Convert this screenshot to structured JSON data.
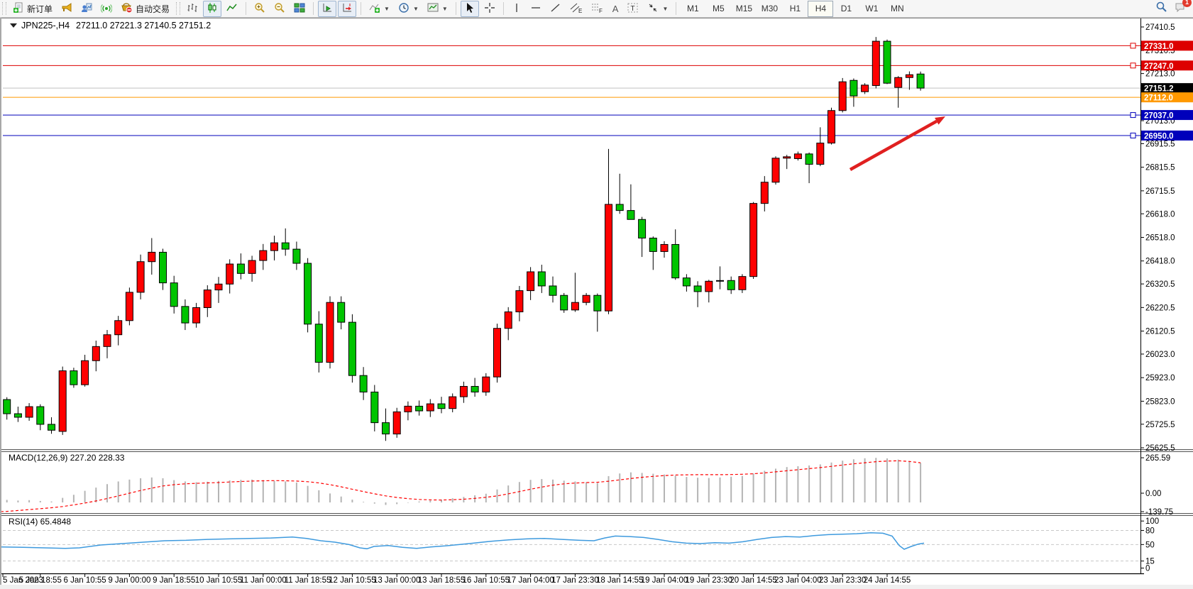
{
  "toolbar": {
    "new_order": "新订单",
    "auto_trading": "自动交易",
    "timeframes": [
      "M1",
      "M5",
      "M15",
      "M30",
      "H1",
      "H4",
      "D1",
      "W1",
      "MN"
    ],
    "active_timeframe": "H4",
    "notification_count": "1",
    "glyphs": {
      "text_a": "A",
      "text_t": "T",
      "channel": "E",
      "fibo": "F",
      "dropdown": "▼"
    }
  },
  "chart": {
    "symbol_period": "JPN225-,H4",
    "ohlc_text": "27211.0 27221.3 27140.5 27151.2",
    "macd_label": "MACD(12,26,9) 227.20 228.33",
    "rsi_label": "RSI(14) 65.4848"
  },
  "chart_data": {
    "type": "candlestick",
    "symbol": "JPN225-",
    "timeframe": "H4",
    "current_bar": {
      "open": 27211.0,
      "high": 27221.3,
      "low": 27140.5,
      "close": 27151.2
    },
    "ylim": [
      25625.5,
      27410.5
    ],
    "price_ticks": [
      27410.5,
      27310.5,
      27213.0,
      27013.0,
      26915.5,
      26815.5,
      26715.5,
      26618.0,
      26518.0,
      26418.0,
      26320.5,
      26220.5,
      26120.5,
      26023.0,
      25923.0,
      25823.0,
      25725.5,
      25625.5
    ],
    "levels": [
      {
        "price": 27331.0,
        "label": "27331.0",
        "line_color": "#dd0000",
        "label_bg": "#dd0000",
        "anchor": true
      },
      {
        "price": 27247.0,
        "label": "27247.0",
        "line_color": "#dd0000",
        "label_bg": "#dd0000",
        "anchor": true
      },
      {
        "price": 27151.2,
        "label": "27151.2",
        "line_color": "#c0c0c0",
        "label_bg": "#000000",
        "anchor": false
      },
      {
        "price": 27112.0,
        "label": "27112.0",
        "line_color": "#ff9900",
        "label_bg": "#ff9900",
        "anchor": false
      },
      {
        "price": 27037.0,
        "label": "27037.0",
        "line_color": "#0000bb",
        "label_bg": "#0000bb",
        "anchor": true
      },
      {
        "price": 26950.0,
        "label": "26950.0",
        "line_color": "#0000bb",
        "label_bg": "#0000bb",
        "anchor": true
      }
    ],
    "candles": [
      [
        25795,
        25850,
        25770,
        25830
      ],
      [
        25830,
        25840,
        25745,
        25770
      ],
      [
        25770,
        25800,
        25735,
        25755
      ],
      [
        25755,
        25815,
        25740,
        25800
      ],
      [
        25800,
        25810,
        25700,
        25725
      ],
      [
        25725,
        25755,
        25685,
        25700
      ],
      [
        25695,
        25970,
        25680,
        25952
      ],
      [
        25952,
        25965,
        25880,
        25893
      ],
      [
        25893,
        26020,
        25885,
        25995
      ],
      [
        25995,
        26080,
        25950,
        26055
      ],
      [
        26055,
        26125,
        26005,
        26105
      ],
      [
        26105,
        26185,
        26060,
        26165
      ],
      [
        26165,
        26305,
        26145,
        26285
      ],
      [
        26285,
        26445,
        26255,
        26415
      ],
      [
        26415,
        26515,
        26360,
        26455
      ],
      [
        26455,
        26470,
        26295,
        26325
      ],
      [
        26325,
        26355,
        26195,
        26225
      ],
      [
        26225,
        26255,
        26125,
        26155
      ],
      [
        26155,
        26240,
        26135,
        26220
      ],
      [
        26220,
        26315,
        26180,
        26295
      ],
      [
        26295,
        26350,
        26240,
        26320
      ],
      [
        26320,
        26425,
        26280,
        26405
      ],
      [
        26405,
        26450,
        26340,
        26365
      ],
      [
        26365,
        26440,
        26330,
        26420
      ],
      [
        26420,
        26490,
        26380,
        26462
      ],
      [
        26462,
        26525,
        26420,
        26495
      ],
      [
        26495,
        26556,
        26440,
        26468
      ],
      [
        26468,
        26500,
        26380,
        26408
      ],
      [
        26408,
        26430,
        26115,
        26150
      ],
      [
        26150,
        26205,
        25945,
        25988
      ],
      [
        25988,
        26268,
        25962,
        26242
      ],
      [
        26242,
        26268,
        26128,
        26158
      ],
      [
        26158,
        26192,
        25902,
        25932
      ],
      [
        25932,
        25968,
        25828,
        25862
      ],
      [
        25862,
        25892,
        25695,
        25732
      ],
      [
        25732,
        25792,
        25655,
        25684
      ],
      [
        25684,
        25795,
        25668,
        25778
      ],
      [
        25778,
        25822,
        25742,
        25802
      ],
      [
        25802,
        25826,
        25762,
        25782
      ],
      [
        25782,
        25832,
        25756,
        25812
      ],
      [
        25812,
        25842,
        25772,
        25792
      ],
      [
        25792,
        25856,
        25776,
        25842
      ],
      [
        25842,
        25906,
        25816,
        25886
      ],
      [
        25886,
        25922,
        25842,
        25862
      ],
      [
        25862,
        25942,
        25846,
        25926
      ],
      [
        25926,
        26152,
        25902,
        26132
      ],
      [
        26132,
        26222,
        26082,
        26202
      ],
      [
        26202,
        26312,
        26162,
        26292
      ],
      [
        26292,
        26392,
        26252,
        26372
      ],
      [
        26372,
        26402,
        26282,
        26312
      ],
      [
        26312,
        26352,
        26242,
        26272
      ],
      [
        26272,
        26282,
        26198,
        26210
      ],
      [
        26210,
        26368,
        26202,
        26242
      ],
      [
        26242,
        26282,
        26230,
        26272
      ],
      [
        26272,
        26280,
        26118,
        26206
      ],
      [
        26206,
        26893,
        26192,
        26658
      ],
      [
        26658,
        26788,
        26618,
        26632
      ],
      [
        26632,
        26743,
        26598,
        26594
      ],
      [
        26594,
        26605,
        26435,
        26515
      ],
      [
        26515,
        26522,
        26380,
        26458
      ],
      [
        26458,
        26502,
        26432,
        26488
      ],
      [
        26488,
        26552,
        26338,
        26346
      ],
      [
        26346,
        26362,
        26288,
        26312
      ],
      [
        26312,
        26332,
        26222,
        26288
      ],
      [
        26288,
        26338,
        26242,
        26332
      ],
      [
        26332,
        26395,
        26298,
        26335
      ],
      [
        26335,
        26352,
        26278,
        26296
      ],
      [
        26296,
        26362,
        26282,
        26352
      ],
      [
        26352,
        26668,
        26342,
        26662
      ],
      [
        26662,
        26778,
        26628,
        26752
      ],
      [
        26752,
        26862,
        26742,
        26854
      ],
      [
        26854,
        26868,
        26808,
        26860
      ],
      [
        26852,
        26882,
        26844,
        26872
      ],
      [
        26872,
        26878,
        26748,
        26828
      ],
      [
        26828,
        26985,
        26820,
        26918
      ],
      [
        26918,
        27068,
        26912,
        27056
      ],
      [
        27056,
        27194,
        27048,
        27178
      ],
      [
        27184,
        27192,
        27072,
        27118
      ],
      [
        27136,
        27172,
        27126,
        27164
      ],
      [
        27162,
        27368,
        27150,
        27350
      ],
      [
        27350,
        27357,
        27168,
        27172
      ],
      [
        27154,
        27202,
        27068,
        27196
      ],
      [
        27196,
        27222,
        27144,
        27208
      ],
      [
        27211,
        27221.3,
        27140.5,
        27151.2
      ]
    ],
    "macd": {
      "params": "12,26,9",
      "value": 227.2,
      "signal_value": 228.33,
      "ticks": [
        {
          "v": 265.59,
          "label": "265.59"
        },
        {
          "v": 0,
          "label": "0.00"
        },
        {
          "v": -139.75,
          "label": "-139.75"
        }
      ],
      "hist": [
        -45,
        -50,
        -55,
        -52,
        -58,
        -62,
        -35,
        -12,
        18,
        42,
        68,
        88,
        102,
        112,
        118,
        112,
        98,
        88,
        82,
        86,
        92,
        96,
        100,
        102,
        98,
        92,
        88,
        80,
        55,
        22,
        -2,
        -25,
        -48,
        -65,
        -78,
        -88,
        -82,
        -72,
        -62,
        -55,
        -48,
        -38,
        -28,
        -16,
        -4,
        28,
        58,
        84,
        100,
        106,
        102,
        94,
        88,
        82,
        76,
        128,
        148,
        156,
        152,
        146,
        140,
        132,
        122,
        116,
        114,
        118,
        124,
        130,
        148,
        168,
        184,
        196,
        202,
        208,
        216,
        230,
        244,
        254,
        262,
        265,
        261,
        252,
        242,
        227
      ],
      "signal": [
        -140,
        -136,
        -130,
        -123,
        -116,
        -109,
        -100,
        -88,
        -74,
        -58,
        -40,
        -20,
        0,
        20,
        38,
        54,
        64,
        70,
        74,
        77,
        80,
        84,
        88,
        91,
        93,
        94,
        93,
        91,
        86,
        77,
        64,
        48,
        30,
        12,
        -5,
        -20,
        -32,
        -41,
        -47,
        -50,
        -51,
        -49,
        -45,
        -39,
        -31,
        -20,
        -5,
        12,
        30,
        46,
        60,
        70,
        76,
        80,
        82,
        90,
        100,
        110,
        119,
        126,
        132,
        136,
        138,
        139,
        139,
        139,
        140,
        142,
        146,
        152,
        160,
        168,
        176,
        184,
        192,
        201,
        211,
        220,
        228,
        236,
        241,
        243,
        238,
        228
      ]
    },
    "rsi": {
      "period": 14,
      "value": 65.4848,
      "ticks": [
        {
          "v": 100,
          "label": "100"
        },
        {
          "v": 80,
          "label": "80"
        },
        {
          "v": 50,
          "label": "50"
        },
        {
          "v": 15,
          "label": "15"
        },
        {
          "v": 0,
          "label": "0"
        }
      ],
      "dashed_levels": [
        80,
        50,
        15
      ],
      "points": [
        [
          0,
          45
        ],
        [
          30,
          44
        ],
        [
          60,
          43
        ],
        [
          90,
          42
        ],
        [
          110,
          43
        ],
        [
          140,
          49
        ],
        [
          170,
          52
        ],
        [
          200,
          55
        ],
        [
          230,
          58
        ],
        [
          260,
          59
        ],
        [
          290,
          61
        ],
        [
          320,
          62
        ],
        [
          350,
          63
        ],
        [
          380,
          64
        ],
        [
          410,
          66
        ],
        [
          430,
          63
        ],
        [
          450,
          58
        ],
        [
          470,
          55
        ],
        [
          490,
          50
        ],
        [
          505,
          43
        ],
        [
          515,
          41
        ],
        [
          525,
          46
        ],
        [
          545,
          48
        ],
        [
          565,
          44
        ],
        [
          585,
          42
        ],
        [
          605,
          45
        ],
        [
          625,
          47
        ],
        [
          645,
          50
        ],
        [
          665,
          53
        ],
        [
          690,
          57
        ],
        [
          715,
          60
        ],
        [
          740,
          62
        ],
        [
          765,
          63
        ],
        [
          790,
          61
        ],
        [
          815,
          59
        ],
        [
          835,
          58
        ],
        [
          850,
          64
        ],
        [
          865,
          68
        ],
        [
          885,
          67
        ],
        [
          905,
          65
        ],
        [
          925,
          61
        ],
        [
          945,
          56
        ],
        [
          965,
          53
        ],
        [
          985,
          52
        ],
        [
          1005,
          54
        ],
        [
          1025,
          53
        ],
        [
          1045,
          56
        ],
        [
          1065,
          61
        ],
        [
          1085,
          65
        ],
        [
          1105,
          67
        ],
        [
          1125,
          66
        ],
        [
          1145,
          69
        ],
        [
          1165,
          71
        ],
        [
          1185,
          72
        ],
        [
          1205,
          73
        ],
        [
          1225,
          75
        ],
        [
          1242,
          74
        ],
        [
          1255,
          68
        ],
        [
          1265,
          48
        ],
        [
          1272,
          40
        ],
        [
          1282,
          46
        ],
        [
          1292,
          51
        ],
        [
          1300,
          53
        ]
      ]
    },
    "time_labels": [
      "5 Jan 2023",
      "5 Jan 18:55",
      "6 Jan 10:55",
      "9 Jan 00:00",
      "9 Jan 18:55",
      "10 Jan 10:55",
      "11 Jan 00:00",
      "11 Jan 18:55",
      "12 Jan 10:55",
      "13 Jan 00:00",
      "13 Jan 18:55",
      "16 Jan 10:55",
      "17 Jan 04:00",
      "17 Jan 23:30",
      "18 Jan 14:55",
      "19 Jan 04:00",
      "19 Jan 23:30",
      "20 Jan 14:55",
      "23 Jan 04:00",
      "23 Jan 23:30",
      "24 Jan 14:55"
    ],
    "annotation_arrow": {
      "from": [
        1196,
        239
      ],
      "to": [
        1330,
        164
      ],
      "color": "#e02020"
    },
    "colors": {
      "up": "#ff0000",
      "down": "#00c400",
      "wick": "#000000",
      "macd_hist": "#b4b4b4",
      "macd_signal": "#ff0000",
      "rsi_line": "#3e9ade",
      "current_line": "#c0c0c0"
    }
  }
}
